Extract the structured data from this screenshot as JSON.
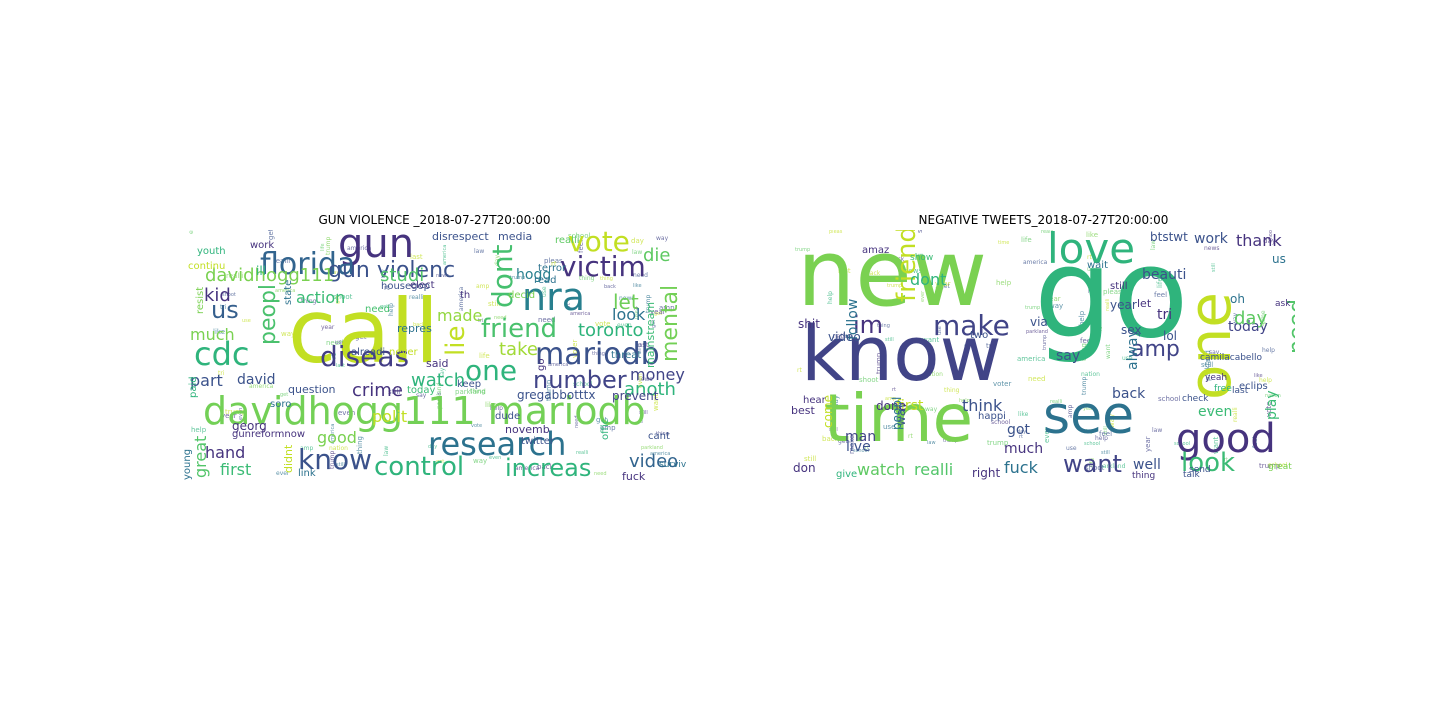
{
  "figure": {
    "panels": [
      {
        "title": "GUN VIOLENCE _2018-07-27T20:00:00",
        "words": [
          {
            "text": "call",
            "color": "#c2df23"
          },
          {
            "text": "davidhogg111 mariodb",
            "color": "#73d056"
          },
          {
            "text": "gun",
            "color": "#46337e"
          },
          {
            "text": "florida",
            "color": "#32648e"
          },
          {
            "text": "vote",
            "color": "#c2df23"
          },
          {
            "text": "victim",
            "color": "#46337e"
          },
          {
            "text": "nra",
            "color": "#277f8e"
          },
          {
            "text": "cdc",
            "color": "#2fb47c"
          },
          {
            "text": "gun violenc",
            "color": "#3b528b"
          },
          {
            "text": "diseas",
            "color": "#433e85"
          },
          {
            "text": "research",
            "color": "#2c728e"
          },
          {
            "text": "mariodb",
            "color": "#3b528b"
          },
          {
            "text": "friend",
            "color": "#4ac16d"
          },
          {
            "text": "one",
            "color": "#2fb47c"
          },
          {
            "text": "know",
            "color": "#3b528b"
          },
          {
            "text": "control",
            "color": "#2fb47c"
          },
          {
            "text": "increas",
            "color": "#2fb47c"
          },
          {
            "text": "number",
            "color": "#414487"
          },
          {
            "text": "dont",
            "color": "#46c06f"
          },
          {
            "text": "peopl",
            "color": "#4ac16d"
          },
          {
            "text": "lie",
            "color": "#c2df23"
          },
          {
            "text": "us",
            "color": "#355f8d"
          },
          {
            "text": "davidhogg111",
            "color": "#7ad151"
          },
          {
            "text": "studi",
            "color": "#52c569"
          },
          {
            "text": "hogg",
            "color": "#277f8e"
          },
          {
            "text": "die",
            "color": "#5ec962"
          },
          {
            "text": "let",
            "color": "#6ece58"
          },
          {
            "text": "made",
            "color": "#93d741"
          },
          {
            "text": "look",
            "color": "#2c728e"
          },
          {
            "text": "toronto",
            "color": "#2fb47c"
          },
          {
            "text": "mental",
            "color": "#73d056"
          },
          {
            "text": "take",
            "color": "#a2da37"
          },
          {
            "text": "money",
            "color": "#414487"
          },
          {
            "text": "anoth",
            "color": "#2fb47c"
          },
          {
            "text": "video",
            "color": "#32648e"
          },
          {
            "text": "kid",
            "color": "#46337e"
          },
          {
            "text": "action",
            "color": "#3bbb75"
          },
          {
            "text": "much",
            "color": "#7ad151"
          },
          {
            "text": "part",
            "color": "#3b528b"
          },
          {
            "text": "david",
            "color": "#3b528b"
          },
          {
            "text": "watch",
            "color": "#2fb47c"
          },
          {
            "text": "crime",
            "color": "#46337e"
          },
          {
            "text": "polit",
            "color": "#c2df23"
          },
          {
            "text": "good",
            "color": "#7ad151"
          },
          {
            "text": "hand",
            "color": "#46337e"
          },
          {
            "text": "first",
            "color": "#3bbb75"
          },
          {
            "text": "great",
            "color": "#52c569"
          },
          {
            "text": "gregabbotttx",
            "color": "#3b528b"
          },
          {
            "text": "continu",
            "color": "#c2df23"
          },
          {
            "text": "media",
            "color": "#3b528b"
          },
          {
            "text": "realli",
            "color": "#5ec962"
          },
          {
            "text": "disrespect",
            "color": "#3b528b"
          },
          {
            "text": "elect",
            "color": "#46337e"
          },
          {
            "text": "terror",
            "color": "#2c728e"
          },
          {
            "text": "decid",
            "color": "#7ad151"
          },
          {
            "text": "read",
            "color": "#2c728e"
          },
          {
            "text": "th",
            "color": "#46337e"
          },
          {
            "text": "twitter",
            "color": "#3b528b"
          },
          {
            "text": "ill",
            "color": "#2fb47c"
          },
          {
            "text": "work",
            "color": "#46337e"
          },
          {
            "text": "youth",
            "color": "#2fb47c"
          },
          {
            "text": "housegop",
            "color": "#3b528b"
          },
          {
            "text": "state",
            "color": "#2c728e"
          },
          {
            "text": "resist",
            "color": "#7ad151"
          },
          {
            "text": "repres",
            "color": "#2c728e"
          },
          {
            "text": "need",
            "color": "#46c06f"
          },
          {
            "text": "alreadi",
            "color": "#3b528b"
          },
          {
            "text": "said",
            "color": "#46337e"
          },
          {
            "text": "never",
            "color": "#c2df23"
          },
          {
            "text": "question",
            "color": "#3b528b"
          },
          {
            "text": "keep",
            "color": "#3b528b"
          },
          {
            "text": "soro",
            "color": "#2c728e"
          },
          {
            "text": "georg",
            "color": "#46337e"
          },
          {
            "text": "gunreformnow",
            "color": "#46337e"
          },
          {
            "text": "young",
            "color": "#2c728e"
          },
          {
            "text": "paid",
            "color": "#2fb47c"
          },
          {
            "text": "today",
            "color": "#3bbb75"
          },
          {
            "text": "dude",
            "color": "#3b528b"
          },
          {
            "text": "novemb",
            "color": "#46337e"
          },
          {
            "text": "prevent",
            "color": "#414487"
          },
          {
            "text": "threat",
            "color": "#2c728e"
          },
          {
            "text": "mainstream",
            "color": "#3bbb75"
          },
          {
            "text": "go",
            "color": "#46337e"
          },
          {
            "text": "offic",
            "color": "#2fb47c"
          },
          {
            "text": "link",
            "color": "#2c728e"
          },
          {
            "text": "didnt",
            "color": "#c2df23"
          },
          {
            "text": "cant",
            "color": "#3b528b"
          },
          {
            "text": "fuck",
            "color": "#46337e"
          },
          {
            "text": "survivor",
            "color": "#2c728e"
          }
        ]
      },
      {
        "title": "NEGATIVE TWEETS_2018-07-27T20:00:00",
        "words": [
          {
            "text": "new",
            "color": "#7ad151"
          },
          {
            "text": "go",
            "color": "#2fb47c"
          },
          {
            "text": "know",
            "color": "#414487"
          },
          {
            "text": "time",
            "color": "#7ad151"
          },
          {
            "text": "see",
            "color": "#2c728e"
          },
          {
            "text": "one",
            "color": "#c2df23"
          },
          {
            "text": "good",
            "color": "#46337e"
          },
          {
            "text": "love",
            "color": "#2fb47c"
          },
          {
            "text": "make",
            "color": "#414487"
          },
          {
            "text": "im",
            "color": "#46337e"
          },
          {
            "text": "friend",
            "color": "#c2df23"
          },
          {
            "text": "look",
            "color": "#3bbb75"
          },
          {
            "text": "want",
            "color": "#414487"
          },
          {
            "text": "need",
            "color": "#52c569"
          },
          {
            "text": "amp",
            "color": "#414487"
          },
          {
            "text": "thank",
            "color": "#46337e"
          },
          {
            "text": "work",
            "color": "#3b528b"
          },
          {
            "text": "dont",
            "color": "#2fb47c"
          },
          {
            "text": "beauti",
            "color": "#3b528b"
          },
          {
            "text": "realli",
            "color": "#52c569"
          },
          {
            "text": "watch",
            "color": "#5ec962"
          },
          {
            "text": "fuck",
            "color": "#2c728e"
          },
          {
            "text": "follow",
            "color": "#2c728e"
          },
          {
            "text": "alway",
            "color": "#2c728e"
          },
          {
            "text": "today",
            "color": "#414487"
          },
          {
            "text": "day",
            "color": "#5ec962"
          },
          {
            "text": "us",
            "color": "#2c728e"
          },
          {
            "text": "oh",
            "color": "#2c728e"
          },
          {
            "text": "btstwt",
            "color": "#3b528b"
          },
          {
            "text": "wait",
            "color": "#2c728e"
          },
          {
            "text": "year",
            "color": "#3b528b"
          },
          {
            "text": "let",
            "color": "#46337e"
          },
          {
            "text": "tri",
            "color": "#46337e"
          },
          {
            "text": "lol",
            "color": "#3b528b"
          },
          {
            "text": "sex",
            "color": "#3b528b"
          },
          {
            "text": "say",
            "color": "#3b528b"
          },
          {
            "text": "back",
            "color": "#3b528b"
          },
          {
            "text": "think",
            "color": "#3b528b"
          },
          {
            "text": "got",
            "color": "#3b528b"
          },
          {
            "text": "much",
            "color": "#46337e"
          },
          {
            "text": "even",
            "color": "#3bbb75"
          },
          {
            "text": "well",
            "color": "#3b528b"
          },
          {
            "text": "play",
            "color": "#3bbb75"
          },
          {
            "text": "via",
            "color": "#3b528b"
          },
          {
            "text": "way",
            "color": "#3b528b"
          },
          {
            "text": "first",
            "color": "#c2df23"
          },
          {
            "text": "done",
            "color": "#46337e"
          },
          {
            "text": "man",
            "color": "#414487"
          },
          {
            "text": "live",
            "color": "#3b528b"
          },
          {
            "text": "video",
            "color": "#3b528b"
          },
          {
            "text": "shit",
            "color": "#46337e"
          },
          {
            "text": "best",
            "color": "#46337e"
          },
          {
            "text": "come",
            "color": "#c2df23"
          },
          {
            "text": "don",
            "color": "#46337e"
          },
          {
            "text": "amaz",
            "color": "#46337e"
          },
          {
            "text": "peopl",
            "color": "#2c728e"
          },
          {
            "text": "happi",
            "color": "#3b528b"
          },
          {
            "text": "right",
            "color": "#46337e"
          },
          {
            "text": "hear",
            "color": "#46337e"
          },
          {
            "text": "give",
            "color": "#2fb47c"
          },
          {
            "text": "great",
            "color": "#7ad151"
          },
          {
            "text": "free",
            "color": "#2fb47c"
          },
          {
            "text": "ask",
            "color": "#46337e"
          },
          {
            "text": "eclips",
            "color": "#3b528b"
          },
          {
            "text": "check",
            "color": "#3b528b"
          },
          {
            "text": "last",
            "color": "#3b528b"
          },
          {
            "text": "camilacabello",
            "color": "#3b528b"
          },
          {
            "text": "yeah",
            "color": "#46337e"
          },
          {
            "text": "two",
            "color": "#3b528b"
          },
          {
            "text": "still",
            "color": "#46337e"
          },
          {
            "text": "show",
            "color": "#3bbb75"
          },
          {
            "text": "send",
            "color": "#3b528b"
          },
          {
            "text": "talk",
            "color": "#3b528b"
          },
          {
            "text": "thing",
            "color": "#46337e"
          }
        ]
      }
    ]
  }
}
